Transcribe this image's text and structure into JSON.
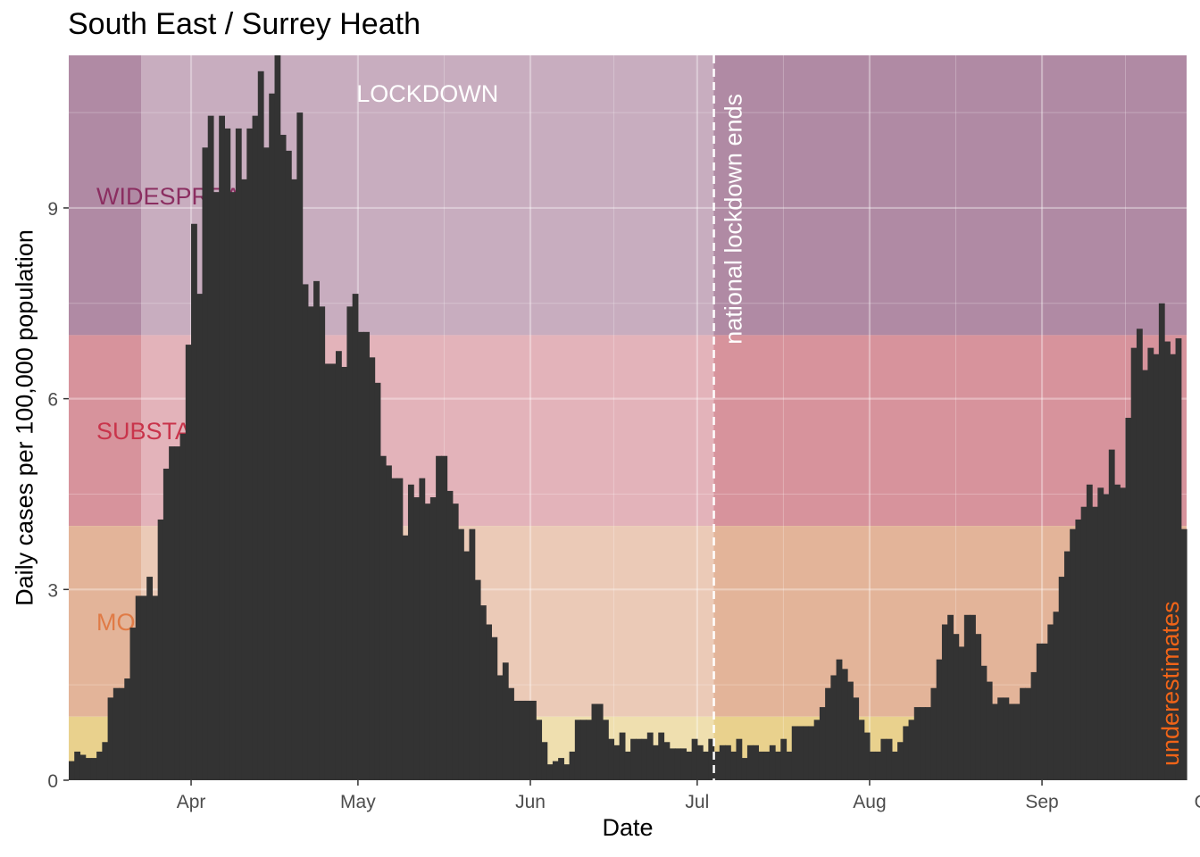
{
  "chart_data": {
    "type": "bar",
    "title": "South East / Surrey Heath",
    "xlabel": "Date",
    "ylabel": "Daily cases per 100,000 population",
    "x_start": "2020-03-10",
    "x_tick_labels": [
      "Apr",
      "May",
      "Jun",
      "Jul",
      "Aug",
      "Sep",
      "Oct"
    ],
    "y_ticks": [
      0,
      3,
      6,
      9
    ],
    "ylim": [
      0,
      11.4
    ],
    "grid": true,
    "bands": [
      {
        "label": "WIDESPREAD",
        "from": 7.0,
        "to": 11.4,
        "color": "#b08aa4",
        "text_color": "#8b2e61"
      },
      {
        "label": "SUBSTANTIAL",
        "from": 4.0,
        "to": 7.0,
        "color": "#d7939c",
        "text_color": "#c9344b"
      },
      {
        "label": "MODERATE",
        "from": 1.0,
        "to": 4.0,
        "color": "#e3b499",
        "text_color": "#e07b46"
      },
      {
        "label": "",
        "from": 0.0,
        "to": 1.0,
        "color": "#e9d18d",
        "text_color": "#c9a93a"
      }
    ],
    "lockdown": {
      "label": "LOCKDOWN",
      "start": "2020-03-23",
      "end": "2020-07-04"
    },
    "vline": {
      "label": "national lockdown ends",
      "date": "2020-07-04"
    },
    "underestimates_label": "underestimates",
    "values": [
      0.3,
      0.45,
      0.4,
      0.35,
      0.35,
      0.45,
      0.6,
      1.3,
      1.45,
      1.45,
      1.6,
      2.4,
      2.9,
      2.9,
      3.2,
      2.9,
      4.1,
      4.9,
      5.25,
      5.25,
      5.45,
      6.85,
      8.75,
      7.65,
      9.95,
      10.45,
      9.25,
      10.45,
      10.25,
      9.25,
      10.25,
      9.45,
      10.25,
      10.45,
      11.15,
      9.95,
      10.8,
      11.4,
      10.15,
      9.9,
      9.45,
      10.5,
      7.8,
      7.45,
      7.85,
      7.45,
      6.55,
      6.55,
      6.75,
      6.5,
      7.45,
      7.65,
      7.05,
      7.05,
      6.65,
      6.25,
      5.1,
      4.95,
      4.75,
      4.75,
      3.85,
      4.65,
      4.45,
      4.75,
      4.35,
      4.45,
      5.1,
      5.1,
      4.55,
      4.35,
      3.95,
      3.6,
      3.95,
      3.15,
      2.75,
      2.45,
      2.25,
      1.65,
      1.85,
      1.45,
      1.25,
      1.25,
      1.25,
      1.25,
      0.95,
      0.6,
      0.25,
      0.3,
      0.35,
      0.25,
      0.45,
      0.95,
      0.95,
      0.95,
      1.2,
      1.2,
      0.95,
      0.65,
      0.55,
      0.75,
      0.45,
      0.65,
      0.65,
      0.65,
      0.75,
      0.55,
      0.75,
      0.6,
      0.5,
      0.5,
      0.5,
      0.45,
      0.65,
      0.55,
      0.45,
      0.65,
      0.45,
      0.55,
      0.55,
      0.45,
      0.65,
      0.35,
      0.55,
      0.55,
      0.45,
      0.45,
      0.55,
      0.45,
      0.65,
      0.45,
      0.85,
      0.85,
      0.85,
      0.85,
      0.95,
      1.15,
      1.45,
      1.65,
      1.9,
      1.75,
      1.55,
      1.3,
      0.95,
      0.75,
      0.45,
      0.45,
      0.65,
      0.65,
      0.45,
      0.6,
      0.85,
      0.95,
      1.15,
      1.15,
      1.15,
      1.45,
      1.9,
      2.45,
      2.6,
      2.3,
      2.1,
      2.6,
      2.6,
      2.3,
      1.8,
      1.55,
      1.2,
      1.3,
      1.3,
      1.2,
      1.2,
      1.45,
      1.45,
      1.7,
      2.15,
      2.15,
      2.45,
      2.65,
      3.2,
      3.6,
      3.95,
      4.1,
      4.3,
      4.65,
      4.3,
      4.6,
      4.5,
      5.2,
      4.65,
      4.6,
      5.7,
      6.8,
      7.1,
      6.45,
      6.8,
      6.7,
      7.5,
      6.9,
      6.7,
      6.95,
      3.95
    ]
  }
}
